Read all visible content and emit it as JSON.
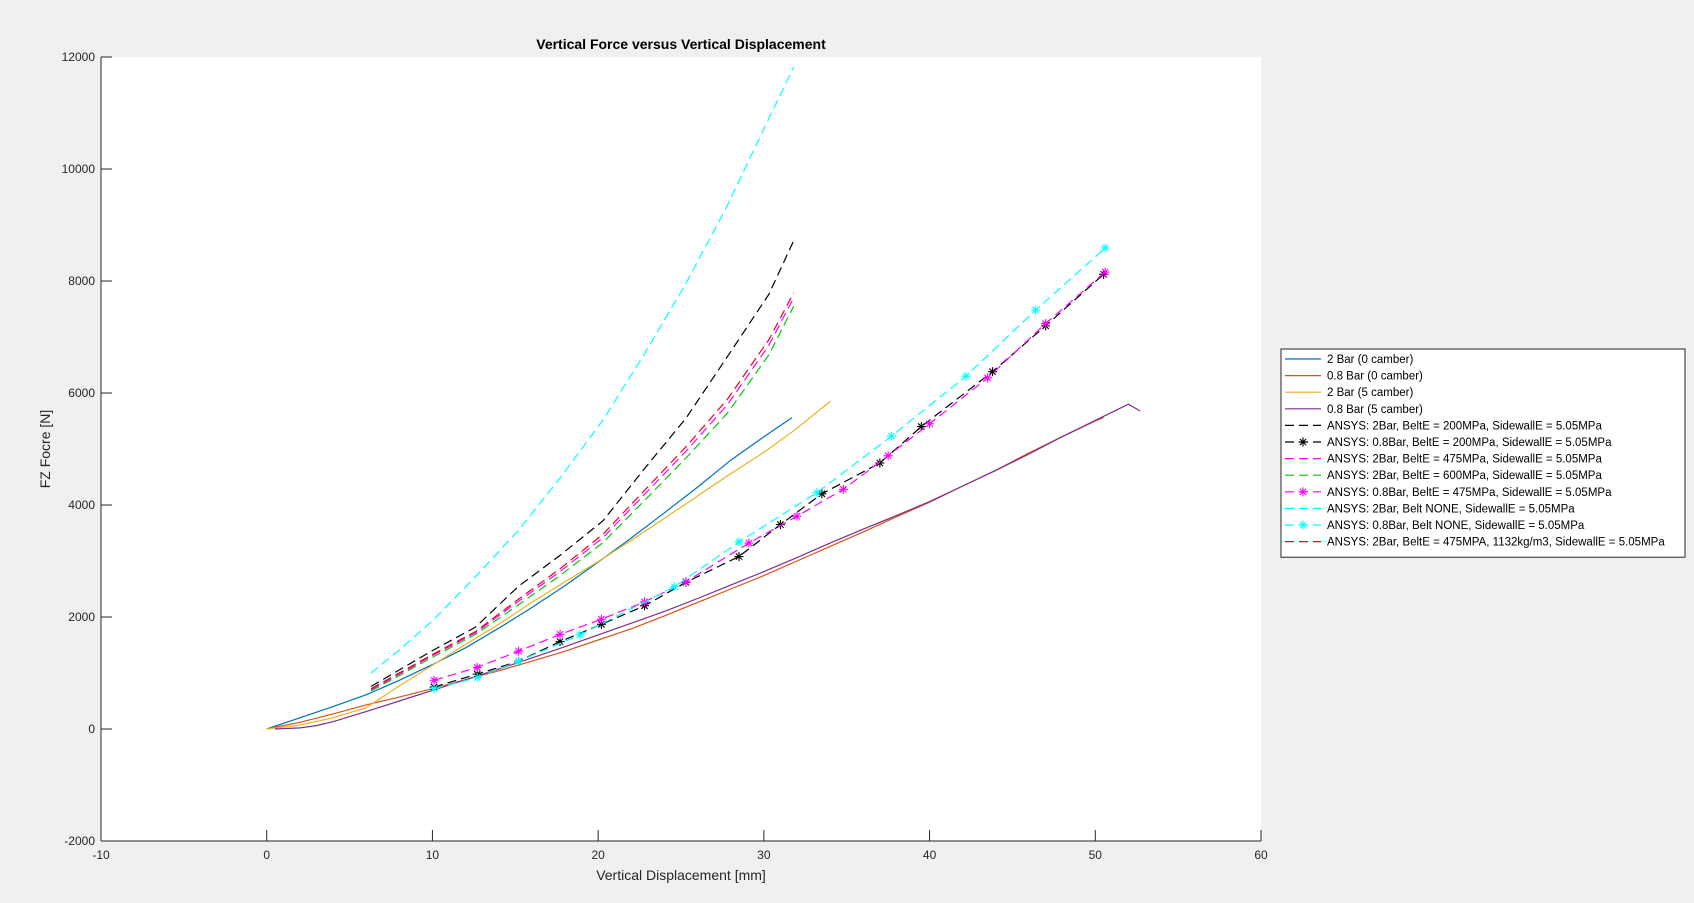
{
  "chart_data": {
    "type": "line",
    "title": "Vertical Force versus Vertical Displacement",
    "xlabel": "Vertical Displacement [mm]",
    "ylabel": "FZ Focre [N]",
    "xlim": [
      -10,
      60
    ],
    "ylim": [
      -2000,
      12000
    ],
    "xticks": [
      -10,
      0,
      10,
      20,
      30,
      40,
      50,
      60
    ],
    "yticks": [
      -2000,
      0,
      2000,
      4000,
      6000,
      8000,
      10000,
      12000
    ],
    "grid": false,
    "legend_position": "right",
    "background": "#f0f0f0",
    "axes_background": "#ffffff",
    "series": [
      {
        "name": "2 Bar (0 camber)",
        "color": "#0072bd",
        "style": "solid",
        "marker": "none",
        "x": [
          0,
          2,
          4,
          6,
          8,
          10,
          12,
          14,
          16,
          18,
          20,
          22,
          24,
          26,
          28,
          30,
          31.7
        ],
        "y": [
          0,
          200,
          400,
          610,
          870,
          1150,
          1450,
          1800,
          2170,
          2560,
          2980,
          3410,
          3860,
          4320,
          4800,
          5220,
          5560
        ]
      },
      {
        "name": "0.8 Bar (0 camber)",
        "color": "#d95319",
        "style": "solid",
        "marker": "none",
        "x": [
          0,
          2,
          4,
          6,
          8,
          10,
          12,
          14,
          16,
          18,
          20,
          22,
          24,
          26,
          28,
          30,
          32,
          34,
          36,
          38,
          40,
          42,
          44,
          46,
          48,
          50,
          50.5
        ],
        "y": [
          0,
          120,
          270,
          430,
          570,
          720,
          880,
          1040,
          1210,
          1390,
          1590,
          1790,
          2020,
          2260,
          2500,
          2740,
          3000,
          3260,
          3520,
          3790,
          4050,
          4340,
          4620,
          4930,
          5220,
          5500,
          5560
        ]
      },
      {
        "name": "2 Bar (5 camber)",
        "color": "#edb120",
        "style": "solid",
        "marker": "none",
        "x": [
          0,
          2,
          4,
          6,
          8,
          10,
          12,
          14,
          16,
          18,
          20,
          22,
          24,
          26,
          28,
          30,
          32,
          34
        ],
        "y": [
          0,
          70,
          200,
          380,
          770,
          1140,
          1510,
          1870,
          2260,
          2630,
          2990,
          3370,
          3760,
          4160,
          4560,
          4940,
          5370,
          5850
        ]
      },
      {
        "name": "0.8 Bar (5 camber)",
        "color": "#7e2f8e",
        "style": "solid",
        "marker": "none",
        "x": [
          0.5,
          2,
          3,
          4,
          6,
          8,
          10,
          12,
          14,
          16,
          18,
          20,
          22,
          24,
          26,
          28,
          30,
          32,
          34,
          36,
          38,
          40,
          42,
          44,
          46,
          48,
          50,
          52,
          52.7
        ],
        "y": [
          0,
          20,
          60,
          130,
          310,
          500,
          690,
          880,
          1070,
          1270,
          1470,
          1680,
          1890,
          2100,
          2330,
          2570,
          2810,
          3060,
          3320,
          3570,
          3810,
          4060,
          4340,
          4620,
          4910,
          5220,
          5510,
          5800,
          5680
        ]
      },
      {
        "name": "ANSYS: 2Bar, BeltE = 200MPa, SidewallE = 5.05MPa",
        "color": "#000000",
        "style": "dash",
        "marker": "none",
        "x": [
          6.3,
          10,
          12.6,
          15.2,
          17.7,
          20.3,
          22.8,
          25.3,
          27.8,
          30.3,
          31.8
        ],
        "y": [
          760,
          1400,
          1820,
          2550,
          3100,
          3720,
          4650,
          5550,
          6650,
          7760,
          8720
        ]
      },
      {
        "name": "ANSYS: 0.8Bar, BeltE = 200MPa, SidewallE = 5.05MPa",
        "color": "#000000",
        "style": "dash",
        "marker": "*",
        "x": [
          10.1,
          12.7,
          15.2,
          17.7,
          20.2,
          22.8,
          25.3,
          28.5,
          31,
          33.5,
          37,
          39.5,
          43.8,
          47,
          50.5
        ],
        "y": [
          750,
          980,
          1210,
          1560,
          1870,
          2200,
          2620,
          3080,
          3650,
          4200,
          4750,
          5400,
          6380,
          7200,
          8120
        ]
      },
      {
        "name": "ANSYS: 2Bar, BeltE = 475MPa, SidewallE = 5.05MPa",
        "color": "#ff00ff",
        "style": "dash",
        "marker": "none",
        "x": [
          6.3,
          10,
          12.6,
          15.2,
          17.7,
          20.3,
          22.8,
          25.3,
          27.8,
          30.3,
          31.8
        ],
        "y": [
          700,
          1310,
          1720,
          2280,
          2810,
          3420,
          4190,
          4960,
          5790,
          6850,
          7700
        ]
      },
      {
        "name": "ANSYS: 2Bar, BeltE = 600MPa, SidewallE = 5.05MPa",
        "color": "#00cc00",
        "style": "dash",
        "marker": "none",
        "x": [
          6.3,
          10,
          12.6,
          15.2,
          17.7,
          20.3,
          22.8,
          25.3,
          27.8,
          30.3,
          31.8
        ],
        "y": [
          680,
          1280,
          1690,
          2220,
          2740,
          3330,
          4080,
          4840,
          5640,
          6680,
          7550
        ]
      },
      {
        "name": "ANSYS: 0.8Bar, BeltE = 475MPa, SidewallE = 5.05MPa",
        "color": "#ff00ff",
        "style": "dash",
        "marker": "*",
        "x": [
          10.1,
          12.7,
          15.2,
          17.7,
          20.2,
          22.8,
          25.3,
          29.1,
          32,
          34.8,
          37.5,
          40,
          43.5,
          47,
          50.6
        ],
        "y": [
          870,
          1100,
          1390,
          1690,
          1960,
          2270,
          2630,
          3320,
          3800,
          4280,
          4880,
          5450,
          6270,
          7240,
          8160
        ]
      },
      {
        "name": "ANSYS: 2Bar, Belt NONE, SidewallE = 5.05MPa",
        "color": "#00ffff",
        "style": "dash",
        "marker": "none",
        "x": [
          6.3,
          8,
          10,
          12.6,
          15.2,
          17.7,
          20.3,
          22.8,
          25.3,
          27.8,
          30.3,
          31.8
        ],
        "y": [
          1000,
          1410,
          1930,
          2720,
          3550,
          4480,
          5520,
          6700,
          7960,
          9350,
          10900,
          11820
        ]
      },
      {
        "name": "ANSYS: 0.8Bar, Belt NONE, SidewallE = 5.05MPa",
        "color": "#00ffff",
        "style": "dash",
        "marker": "*",
        "x": [
          10.1,
          12.7,
          15.2,
          18.9,
          24.6,
          28.5,
          33.2,
          37.7,
          42.2,
          46.4,
          50.6
        ],
        "y": [
          720,
          920,
          1210,
          1680,
          2540,
          3340,
          4220,
          5230,
          6300,
          7480,
          8590
        ]
      },
      {
        "name": "ANSYS: 2Bar, BeltE = 475MPA, 1132kg/m3, SidewallE = 5.05MPa",
        "color": "#e8001e",
        "style": "dash",
        "marker": "none",
        "x": [
          6.3,
          10,
          12.6,
          15.2,
          17.7,
          20.3,
          22.8,
          25.3,
          27.8,
          30.3,
          31.8
        ],
        "y": [
          720,
          1330,
          1740,
          2320,
          2860,
          3480,
          4260,
          5040,
          5890,
          6950,
          7790
        ]
      }
    ]
  }
}
